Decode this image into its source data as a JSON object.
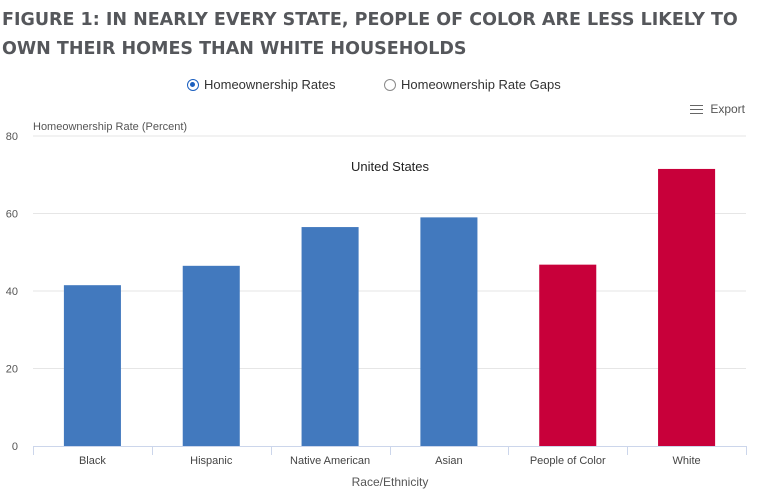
{
  "figure": {
    "title": "FIGURE 1: IN NEARLY EVERY STATE, PEOPLE OF COLOR ARE LESS LIKELY TO OWN THEIR HOMES THAN WHITE HOUSEHOLDS"
  },
  "toggle": {
    "options": [
      {
        "label": "Homeownership Rates",
        "selected": true
      },
      {
        "label": "Homeownership Rate Gaps",
        "selected": false
      }
    ]
  },
  "export": {
    "label": "Export",
    "icon": "menu-icon"
  },
  "chart_data": {
    "type": "bar",
    "title": "United States",
    "xlabel": "Race/Ethnicity",
    "ylabel": "Homeownership Rate (Percent)",
    "ylim": [
      0,
      80
    ],
    "yticks": [
      0,
      20,
      40,
      60,
      80
    ],
    "grid": true,
    "legend": "none",
    "categories": [
      "Black",
      "Hispanic",
      "Native American",
      "Asian",
      "People of Color",
      "White"
    ],
    "values": [
      41.5,
      46.5,
      56.5,
      59,
      46.8,
      71.5
    ],
    "colors": [
      "#4279be",
      "#4279be",
      "#4279be",
      "#4279be",
      "#c8003a",
      "#c8003a"
    ]
  }
}
